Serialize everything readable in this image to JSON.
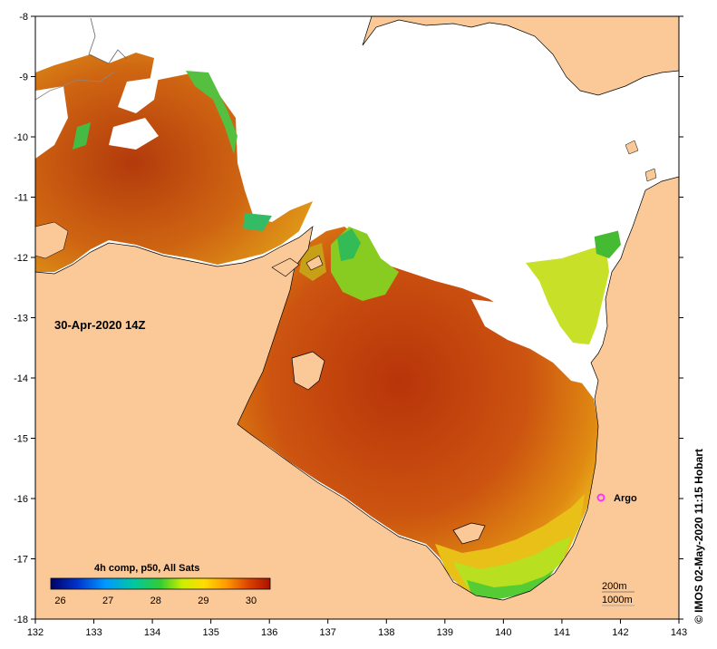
{
  "map": {
    "date_label": "30-Apr-2020 14Z",
    "x_ticks": [
      "132",
      "133",
      "134",
      "135",
      "136",
      "137",
      "138",
      "139",
      "140",
      "141",
      "142",
      "143"
    ],
    "y_ticks": [
      "-8",
      "-9",
      "-10",
      "-11",
      "-12",
      "-13",
      "-14",
      "-15",
      "-16",
      "-17",
      "-18"
    ],
    "lon_range": [
      132,
      143
    ],
    "lat_range": [
      -18,
      -8
    ]
  },
  "legend": {
    "title": "4h comp, p50, All Sats",
    "labels": [
      "26",
      "27",
      "28",
      "29",
      "30"
    ],
    "range": [
      25.8,
      30.4
    ]
  },
  "markers": [
    {
      "name": "Argo",
      "lon": 141.7,
      "lat": -16.0,
      "color": "#ff33ff"
    }
  ],
  "depth_legend": {
    "line1": "200m",
    "line2": "1000m"
  },
  "credit": "IMOS 02-May-2020 11:15 Hobart",
  "copyright_symbol": "©",
  "colors": {
    "land": "#fbc898",
    "no_data": "#ffffff",
    "sst_warm": "#c2410a",
    "sst_mid": "#e07a10",
    "sst_cool": "#8fd80a"
  }
}
